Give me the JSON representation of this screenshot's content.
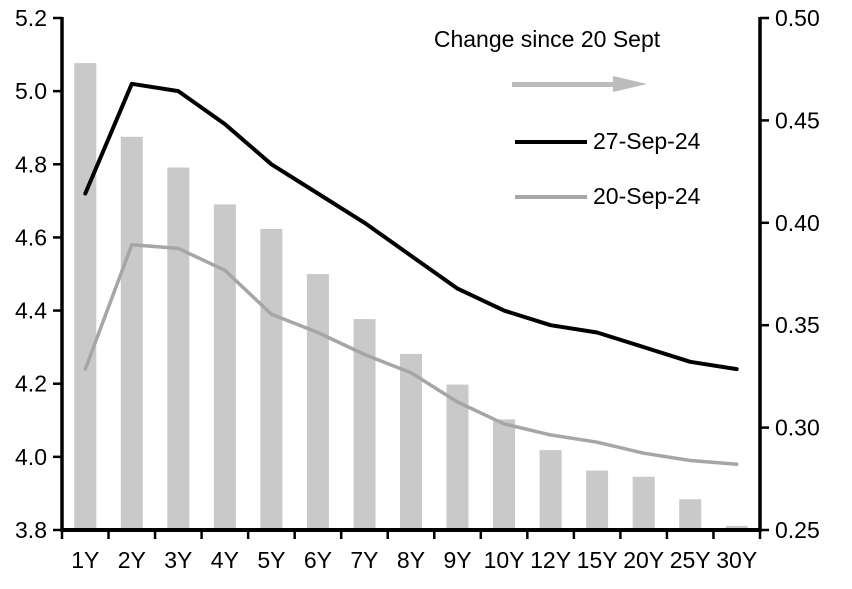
{
  "chart_data": {
    "type": "combo",
    "title": "",
    "categories": [
      "1Y",
      "2Y",
      "3Y",
      "4Y",
      "5Y",
      "6Y",
      "7Y",
      "8Y",
      "9Y",
      "10Y",
      "12Y",
      "15Y",
      "20Y",
      "25Y",
      "30Y"
    ],
    "series": [
      {
        "name": "Change since 20 Sept",
        "type": "bar",
        "axis": "right",
        "color": "#c9c9c9",
        "values": [
          0.478,
          0.442,
          0.427,
          0.409,
          0.397,
          0.375,
          0.353,
          0.336,
          0.321,
          0.304,
          0.289,
          0.279,
          0.276,
          0.265,
          0.252
        ]
      },
      {
        "name": "27-Sep-24",
        "type": "line",
        "axis": "left",
        "color": "#000000",
        "values": [
          4.72,
          5.02,
          5.0,
          4.91,
          4.8,
          4.72,
          4.64,
          4.55,
          4.46,
          4.4,
          4.36,
          4.34,
          4.3,
          4.26,
          4.24
        ]
      },
      {
        "name": "20-Sep-24",
        "type": "line",
        "axis": "left",
        "color": "#a6a6a6",
        "values": [
          4.24,
          4.58,
          4.57,
          4.51,
          4.39,
          4.34,
          4.28,
          4.23,
          4.15,
          4.09,
          4.06,
          4.04,
          4.01,
          3.99,
          3.98
        ]
      }
    ],
    "left_axis": {
      "min": 3.8,
      "max": 5.2,
      "step": 0.2,
      "tick_labels": [
        "3.8",
        "4.0",
        "4.2",
        "4.4",
        "4.6",
        "4.8",
        "5.0",
        "5.2"
      ]
    },
    "right_axis": {
      "min": 0.25,
      "max": 0.5,
      "step": 0.05,
      "tick_labels": [
        "0.25",
        "0.30",
        "0.35",
        "0.40",
        "0.45",
        "0.50"
      ]
    },
    "grid": false,
    "legend_position": "inside-top-right",
    "legend": {
      "bar_label": "Change since 20 Sept",
      "arrow_color": "#bcbcbc",
      "line1_label": "27-Sep-24",
      "line1_color": "#000000",
      "line2_label": "20-Sep-24",
      "line2_color": "#a6a6a6"
    }
  }
}
